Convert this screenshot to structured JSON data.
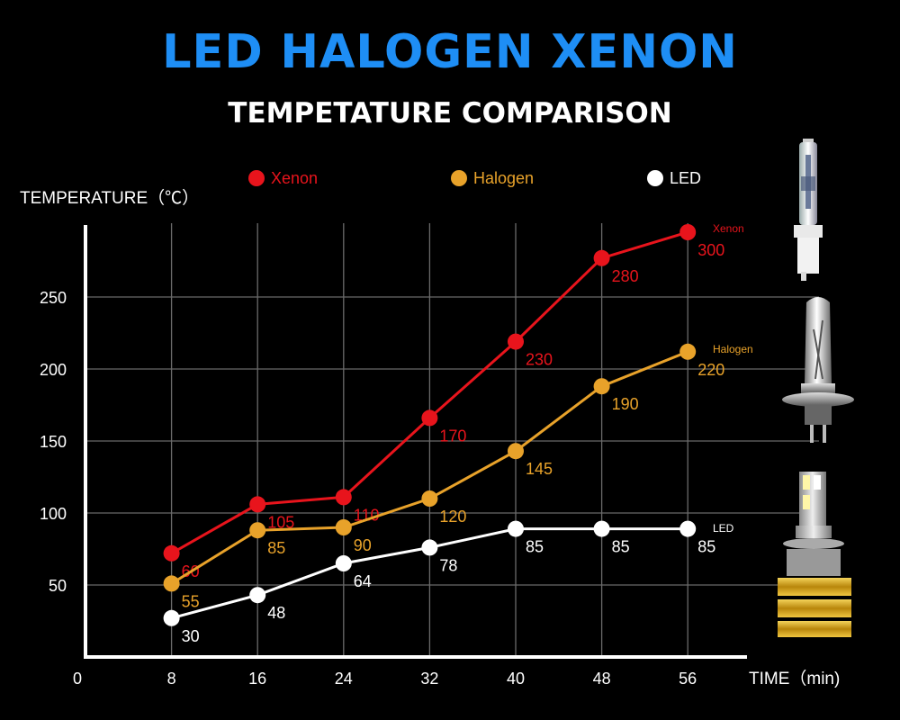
{
  "title": "LED HALOGEN XENON",
  "subtitle": "TEMPETATURE COMPARISON",
  "chart_data": {
    "type": "line",
    "ylabel": "TEMPERATURE（℃）",
    "xlabel": "TIME（min)",
    "x_ticks": [
      "0",
      "8",
      "16",
      "24",
      "32",
      "40",
      "48",
      "56"
    ],
    "y_ticks": [
      "50",
      "100",
      "150",
      "200",
      "250"
    ],
    "xlim": [
      0,
      64
    ],
    "ylim": [
      0,
      300
    ],
    "x": [
      8,
      16,
      24,
      32,
      40,
      48,
      56
    ],
    "grid": true,
    "legend_position": "top",
    "series": [
      {
        "name": "Xenon",
        "color": "#e8141c",
        "values": [
          60,
          105,
          110,
          170,
          230,
          280,
          300
        ],
        "plotted": [
          72,
          106,
          111,
          166,
          219,
          277,
          295
        ],
        "end_label": "Xenon"
      },
      {
        "name": "Halogen",
        "color": "#e8a22a",
        "values": [
          55,
          85,
          90,
          120,
          145,
          190,
          220
        ],
        "plotted": [
          51,
          88,
          90,
          110,
          143,
          188,
          212
        ],
        "end_label": "Halogen"
      },
      {
        "name": "LED",
        "color": "#ffffff",
        "values": [
          30,
          48,
          64,
          78,
          85,
          85,
          85
        ],
        "plotted": [
          27,
          43,
          65,
          76,
          89,
          89,
          89
        ],
        "end_label": "LED"
      }
    ]
  },
  "images": [
    {
      "name": "xenon-bulb-image",
      "depicts": "xenon bulb"
    },
    {
      "name": "halogen-bulb-image",
      "depicts": "halogen bulb"
    },
    {
      "name": "led-bulb-image",
      "depicts": "LED bulb"
    }
  ]
}
